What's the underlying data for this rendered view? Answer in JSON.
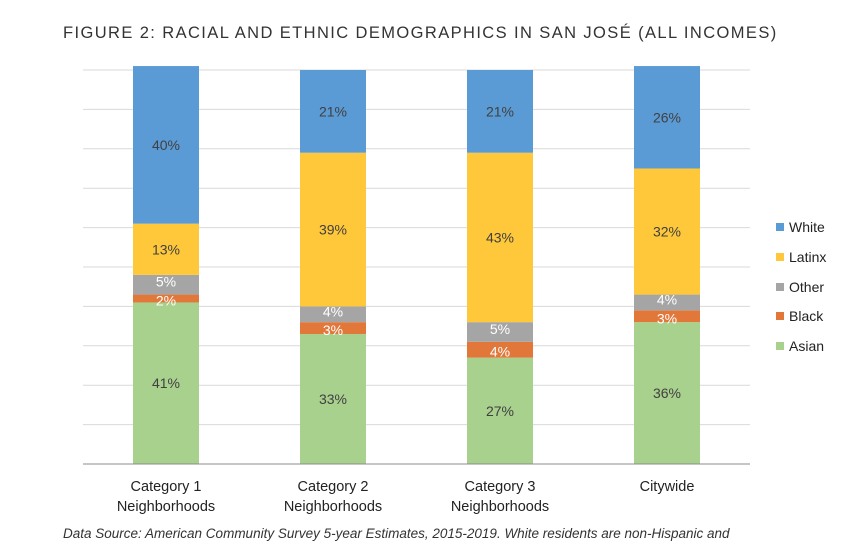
{
  "chart_data": {
    "type": "bar",
    "stacked": true,
    "title": "FIGURE 2: RACIAL AND ETHNIC DEMOGRAPHICS IN SAN JOSÉ (ALL INCOMES)",
    "categories": [
      [
        "Category 1",
        "Neighborhoods"
      ],
      [
        "Category 2",
        "Neighborhoods"
      ],
      [
        "Category 3",
        "Neighborhoods"
      ],
      [
        "Citywide"
      ]
    ],
    "series": [
      {
        "name": "Asian",
        "color": "#A9D18E",
        "values": [
          41,
          33,
          27,
          36
        ],
        "labels": [
          "41%",
          "33%",
          "27%",
          "36%"
        ]
      },
      {
        "name": "Black",
        "color": "#E2773A",
        "values": [
          2,
          3,
          4,
          3
        ],
        "labels": [
          "2%",
          "3%",
          "4%",
          "3%"
        ]
      },
      {
        "name": "Other",
        "color": "#A5A5A5",
        "values": [
          5,
          4,
          5,
          4
        ],
        "labels": [
          "5%",
          "4%",
          "5%",
          "4%"
        ]
      },
      {
        "name": "Latinx",
        "color": "#FFC83A",
        "values": [
          13,
          39,
          43,
          32
        ],
        "labels": [
          "13%",
          "39%",
          "43%",
          "32%"
        ]
      },
      {
        "name": "White",
        "color": "#5B9BD5",
        "values": [
          40,
          21,
          21,
          26
        ],
        "labels": [
          "40%",
          "21%",
          "21%",
          "26%"
        ]
      }
    ],
    "legend_order": [
      "White",
      "Latinx",
      "Other",
      "Black",
      "Asian"
    ],
    "legend_position": "right",
    "ylim": [
      0,
      100
    ],
    "grid": true,
    "source_note": "Data Source: American Community Survey 5-year Estimates, 2015-2019. White residents are non-Hispanic and"
  }
}
